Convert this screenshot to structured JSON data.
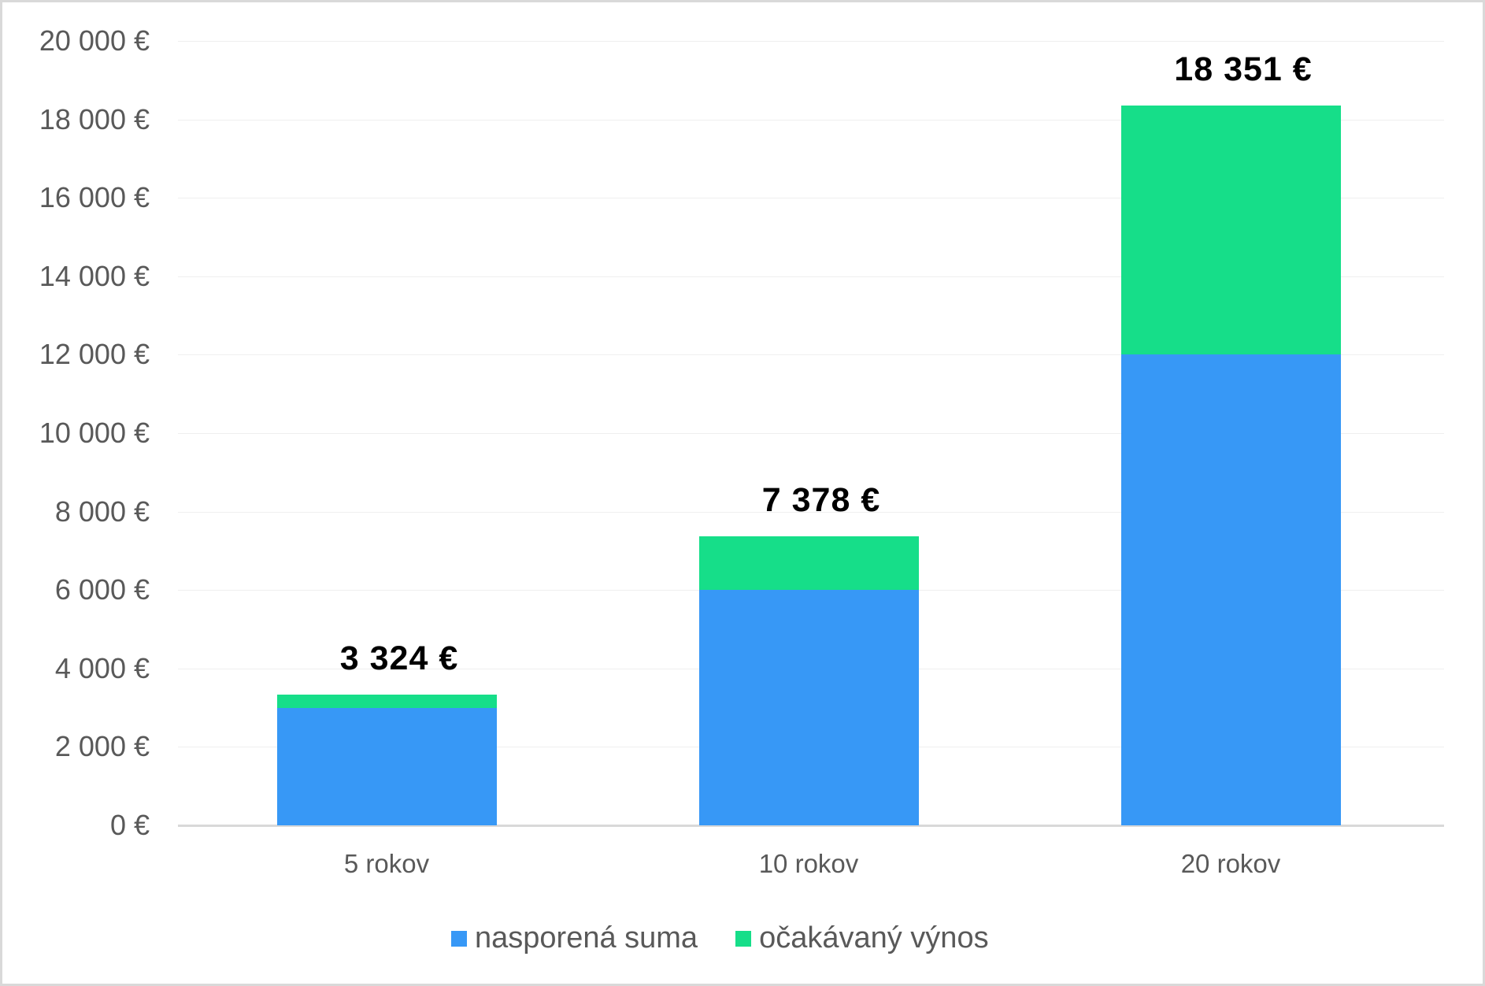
{
  "chart_data": {
    "type": "bar",
    "stacked": true,
    "title": "",
    "xlabel": "",
    "ylabel": "",
    "ylim": [
      0,
      20000
    ],
    "categories": [
      "5 rokov",
      "10 rokov",
      "20 rokov"
    ],
    "series": [
      {
        "name": "nasporená suma",
        "color": "#3798f6",
        "values": [
          3000,
          6000,
          12000
        ]
      },
      {
        "name": "očakávaný výnos",
        "color": "#16de89",
        "values": [
          324,
          1378,
          6351
        ]
      }
    ],
    "totals": [
      3324,
      7378,
      18351
    ],
    "total_labels": [
      "3 324  €",
      "7 378  €",
      "18 351  €"
    ],
    "y_ticks": [
      "0 €",
      "2 000 €",
      "4 000 €",
      "6 000 €",
      "8 000 €",
      "10 000 €",
      "12 000 €",
      "14 000 €",
      "16 000 €",
      "18 000 €",
      "20 000 €"
    ],
    "y_tick_values": [
      0,
      2000,
      4000,
      6000,
      8000,
      10000,
      12000,
      14000,
      16000,
      18000,
      20000
    ],
    "grid": true,
    "legend_position": "bottom"
  },
  "legend": {
    "items": [
      {
        "label": "nasporená suma",
        "color": "#3798f6"
      },
      {
        "label": "očakávaný výnos",
        "color": "#16de89"
      }
    ]
  }
}
